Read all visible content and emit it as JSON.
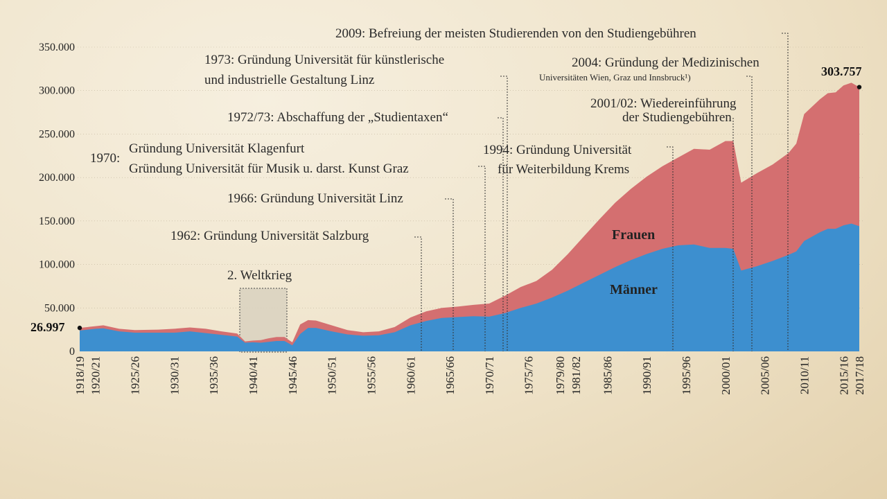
{
  "chart_data": {
    "type": "area",
    "stacked": true,
    "ylim": [
      0,
      350000
    ],
    "y_ticks": [
      "0",
      "50.000",
      "100.000",
      "150.000",
      "200.000",
      "250.000",
      "300.000",
      "350.000"
    ],
    "x_tick_labels": [
      "1918/19",
      "1920/21",
      "1925/26",
      "1930/31",
      "1935/36",
      "1940/41",
      "1945/46",
      "1950/51",
      "1955/56",
      "1960/61",
      "1965/66",
      "1970/71",
      "1975/76",
      "1979/80",
      "1981/82",
      "1985/86",
      "1990/91",
      "1995/96",
      "2000/01",
      "2005/06",
      "2010/11",
      "2015/16",
      "2017/18"
    ],
    "x": [
      1918,
      1920,
      1921,
      1923,
      1925,
      1928,
      1930,
      1932,
      1934,
      1936,
      1938,
      1939,
      1940,
      1941,
      1942,
      1943,
      1944,
      1945,
      1946,
      1947,
      1948,
      1950,
      1952,
      1954,
      1956,
      1958,
      1960,
      1962,
      1964,
      1966,
      1968,
      1970,
      1972,
      1974,
      1976,
      1978,
      1980,
      1982,
      1984,
      1986,
      1988,
      1990,
      1992,
      1994,
      1996,
      1998,
      2000,
      2001,
      2002,
      2004,
      2006,
      2008,
      2009,
      2010,
      2012,
      2013,
      2014,
      2015,
      2016,
      2017
    ],
    "series": [
      {
        "name": "Männer",
        "color": "#3d8fcf",
        "values": [
          24000,
          26000,
          26500,
          23000,
          21500,
          21500,
          21500,
          23000,
          21000,
          19000,
          17000,
          10000,
          10500,
          10000,
          11000,
          12000,
          12000,
          7000,
          20000,
          27000,
          27000,
          23000,
          19500,
          18000,
          18500,
          22000,
          30000,
          35000,
          38500,
          39500,
          40500,
          40000,
          44000,
          50000,
          55000,
          62000,
          70000,
          79000,
          88000,
          97000,
          105000,
          112000,
          118000,
          122000,
          123000,
          119000,
          119000,
          118000,
          93000,
          98000,
          104000,
          111000,
          115000,
          127000,
          137000,
          141000,
          141000,
          145000,
          147000,
          144000
        ]
      },
      {
        "name": "Frauen",
        "color": "#d46f70",
        "values": [
          3000,
          3000,
          3500,
          3000,
          3000,
          3500,
          4500,
          4500,
          5000,
          4000,
          3500,
          1500,
          2000,
          3000,
          4000,
          4500,
          4500,
          3500,
          11000,
          9000,
          8500,
          7000,
          5000,
          4000,
          4500,
          6000,
          9000,
          11000,
          11500,
          12000,
          13000,
          15000,
          20000,
          24000,
          26000,
          32000,
          42000,
          53000,
          64000,
          74000,
          82000,
          89000,
          95000,
          101000,
          110000,
          113000,
          123000,
          124000,
          101000,
          107000,
          111000,
          117000,
          124000,
          146000,
          153000,
          156000,
          157000,
          161000,
          162000,
          160000
        ]
      }
    ],
    "start_label": "26.997",
    "end_label": "303.757",
    "notes": [
      "2. Weltkrieg",
      "1970:",
      "Gründung Universität Klagenfurt",
      "Gründung Universität für Musik u. darst. Kunst Graz",
      "1962: Gründung Universität Salzburg",
      "1966: Gründung Universität Linz",
      "1972/73: Abschaffung der „Studientaxen“",
      "1973: Gründung Universität für künstlerische",
      "und industrielle Gestaltung Linz",
      "1994: Gründung Universität",
      "für Weiterbildung Krems",
      "2001/02: Wiedereinführung",
      "der Studiengebühren",
      "2004: Gründung der Medizinischen",
      "Universitäten Wien, Graz und Innsbruck¹)",
      "2009: Befreiung der meisten Studierenden von den Studiengebühren"
    ]
  }
}
